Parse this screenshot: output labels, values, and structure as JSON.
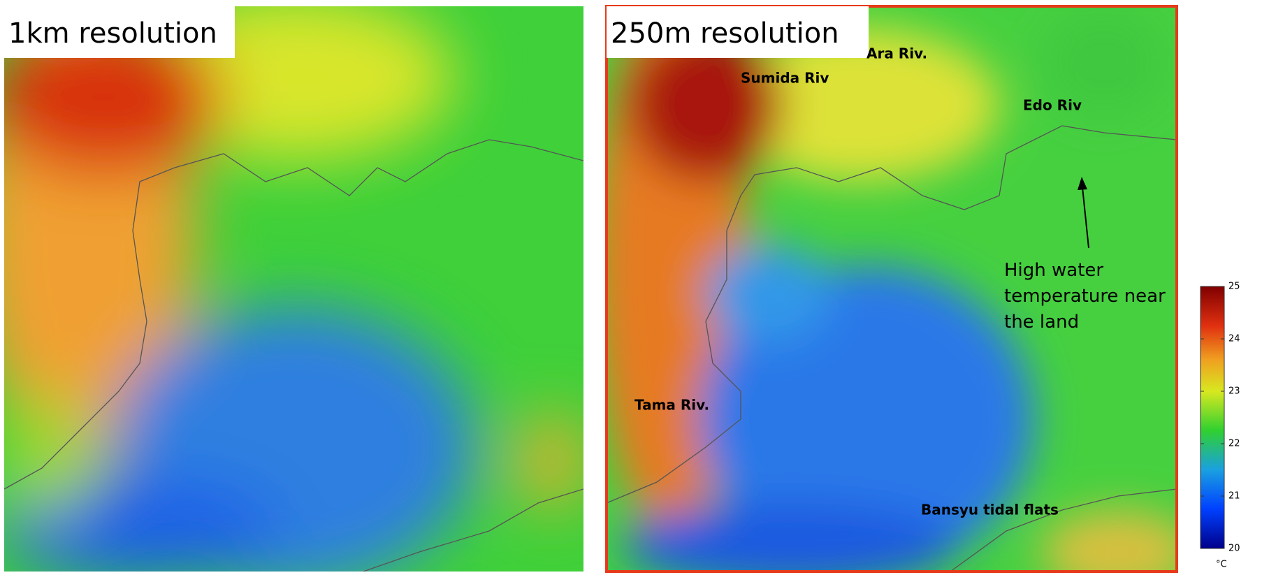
{
  "panels": [
    {
      "title": "1km resolution"
    },
    {
      "title": "250m resolution",
      "rivers": [
        "Ara Riv.",
        "Sumida Riv",
        "Edo Riv",
        "Tama Riv.",
        "Bansyu tidal flats"
      ],
      "annotation": [
        "High water",
        "temperature near",
        "the land"
      ]
    }
  ],
  "colorbar": {
    "lim": [
      20,
      25
    ],
    "ticks": [
      20,
      21,
      22,
      23,
      24,
      25
    ],
    "unit": "°C"
  }
}
